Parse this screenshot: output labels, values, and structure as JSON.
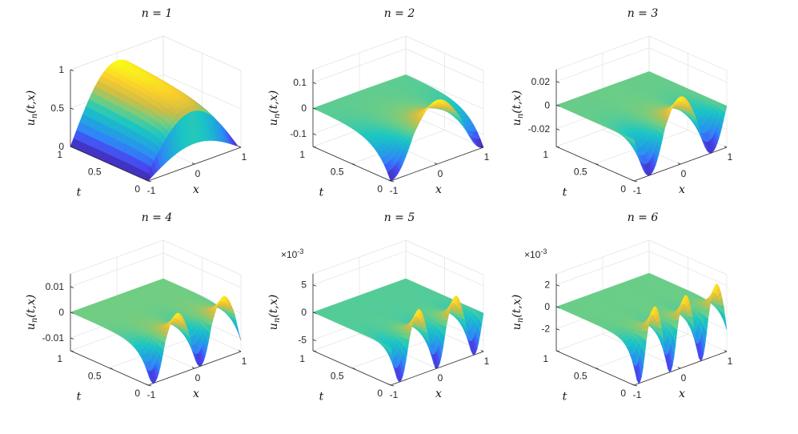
{
  "figure": {
    "colormap": [
      "#3e26a8",
      "#4748f0",
      "#2e87f7",
      "#1fa8db",
      "#1ac7c2",
      "#6fcd82",
      "#cfbd44",
      "#fbce2b",
      "#f9fb15"
    ],
    "colormap_name": "parula",
    "grid": true
  },
  "chart_data": [
    {
      "type": "surface",
      "title": "n = 1",
      "n": 1,
      "xlabel": "x",
      "ylabel": "t",
      "zlabel": "u_n(t,x)",
      "x_range": [
        -1,
        1
      ],
      "t_range": [
        0,
        1
      ],
      "zlim": [
        0,
        1
      ],
      "zscale_exponent": "",
      "x_ticks": [
        "-1",
        "0",
        "1"
      ],
      "t_ticks": [
        "0",
        "0.5",
        "1"
      ],
      "z_ticks": [
        "0",
        "0.5",
        "1"
      ],
      "z_tick_values": [
        0,
        0.5,
        1
      ],
      "surface_min": 0,
      "surface_max": 0.9
    },
    {
      "type": "surface",
      "title": "n = 2",
      "n": 2,
      "xlabel": "x",
      "ylabel": "t",
      "zlabel": "u_n(t,x)",
      "x_range": [
        -1,
        1
      ],
      "t_range": [
        0,
        1
      ],
      "zlim": [
        -0.15,
        0.15
      ],
      "zscale_exponent": "",
      "x_ticks": [
        "-1",
        "0",
        "1"
      ],
      "t_ticks": [
        "0",
        "0.5",
        "1"
      ],
      "z_ticks": [
        "-0.1",
        "0",
        "0.1"
      ],
      "z_tick_values": [
        -0.1,
        0,
        0.1
      ],
      "surface_min": -0.15,
      "surface_max": 0.1
    },
    {
      "type": "surface",
      "title": "n = 3",
      "n": 3,
      "xlabel": "x",
      "ylabel": "t",
      "zlabel": "u_n(t,x)",
      "x_range": [
        -1,
        1
      ],
      "t_range": [
        0,
        1
      ],
      "zlim": [
        -0.035,
        0.03
      ],
      "zscale_exponent": "",
      "x_ticks": [
        "-1",
        "0",
        "1"
      ],
      "t_ticks": [
        "0",
        "0.5",
        "1"
      ],
      "z_ticks": [
        "-0.02",
        "0",
        "0.02"
      ],
      "z_tick_values": [
        -0.02,
        0,
        0.02
      ],
      "surface_min": -0.035,
      "surface_max": 0.022
    },
    {
      "type": "surface",
      "title": "n = 4",
      "n": 4,
      "xlabel": "x",
      "ylabel": "t",
      "zlabel": "u_n(t,x)",
      "x_range": [
        -1,
        1
      ],
      "t_range": [
        0,
        1
      ],
      "zlim": [
        -0.015,
        0.015
      ],
      "zscale_exponent": "",
      "x_ticks": [
        "-1",
        "0",
        "1"
      ],
      "t_ticks": [
        "0",
        "0.5",
        "1"
      ],
      "z_ticks": [
        "-0.01",
        "0",
        "0.01"
      ],
      "z_tick_values": [
        -0.01,
        0,
        0.01
      ],
      "surface_min": -0.015,
      "surface_max": 0.009
    },
    {
      "type": "surface",
      "title": "n = 5",
      "n": 5,
      "xlabel": "x",
      "ylabel": "t",
      "zlabel": "u_n(t,x)",
      "x_range": [
        -1,
        1
      ],
      "t_range": [
        0,
        1
      ],
      "zlim": [
        -7,
        7
      ],
      "zscale_exponent": "×10",
      "zscale_power": "-3",
      "x_ticks": [
        "-1",
        "0",
        "1"
      ],
      "t_ticks": [
        "0",
        "0.5",
        "1"
      ],
      "z_ticks": [
        "-5",
        "0",
        "5"
      ],
      "z_tick_values": [
        -5,
        0,
        5
      ],
      "surface_min": -7,
      "surface_max": 5
    },
    {
      "type": "surface",
      "title": "n = 6",
      "n": 6,
      "xlabel": "x",
      "ylabel": "t",
      "zlabel": "u_n(t,x)",
      "x_range": [
        -1,
        1
      ],
      "t_range": [
        0,
        1
      ],
      "zlim": [
        -4,
        3
      ],
      "zscale_exponent": "×10",
      "zscale_power": "-3",
      "x_ticks": [
        "-1",
        "0",
        "1"
      ],
      "t_ticks": [
        "0",
        "0.5",
        "1"
      ],
      "z_ticks": [
        "-2",
        "0",
        "2"
      ],
      "z_tick_values": [
        -2,
        0,
        2
      ],
      "surface_min": -4,
      "surface_max": 2.5
    }
  ]
}
